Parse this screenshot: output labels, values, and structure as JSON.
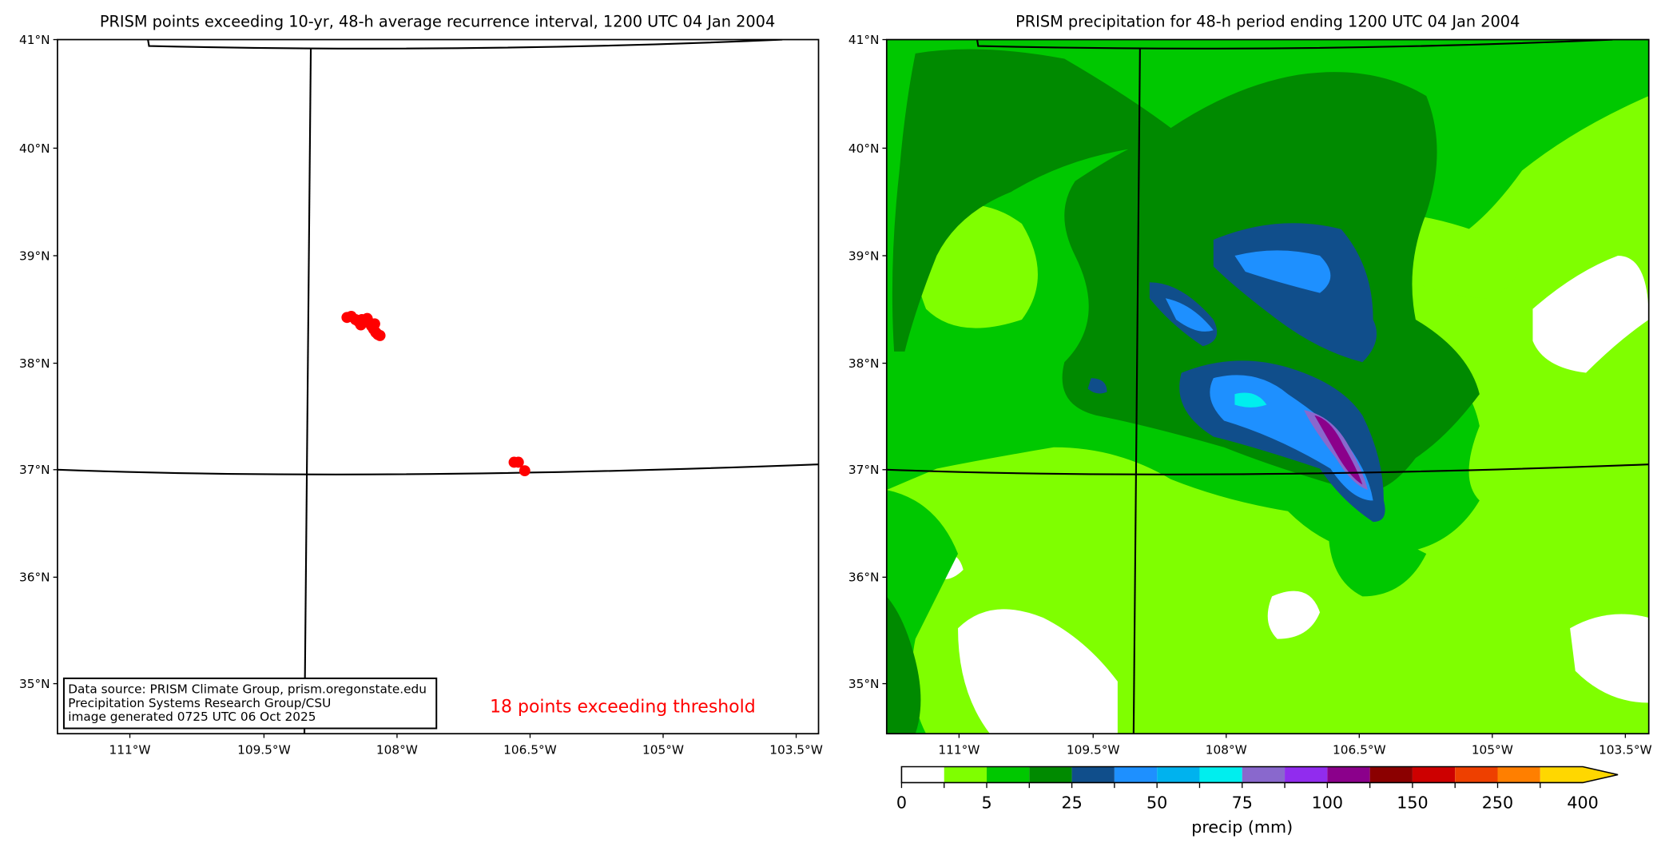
{
  "left_panel": {
    "title": "PRISM points exceeding 10-yr, 48-h average recurrence interval, 1200 UTC 04 Jan 2004",
    "annotation": "18 points exceeding threshold",
    "annotation_color": "#ff0000",
    "source_box": [
      "Data source: PRISM Climate Group, prism.oregonstate.edu",
      "Precipitation Systems Research Group/CSU",
      "image generated 0725 UTC 06 Oct 2025"
    ],
    "point_color": "#ff0000"
  },
  "right_panel": {
    "title": "PRISM precipitation for 48-h period ending 1200 UTC 04 Jan 2004"
  },
  "lat_ticks": [
    "41°N",
    "40°N",
    "39°N",
    "38°N",
    "37°N",
    "36°N",
    "35°N"
  ],
  "lon_ticks": [
    "111°W",
    "109.5°W",
    "108°W",
    "106.5°W",
    "105°W",
    "103.5°W"
  ],
  "colorbar": {
    "label": "precip (mm)",
    "tick_labels": [
      "0",
      "5",
      "25",
      "50",
      "75",
      "100",
      "150",
      "250",
      "400"
    ],
    "colors": [
      "#ffffff",
      "#7fff00",
      "#00c800",
      "#008a00",
      "#104e8b",
      "#1e90ff",
      "#00b2ee",
      "#00eeee",
      "#8968cd",
      "#912cee",
      "#8b008b",
      "#8b0000",
      "#cd0000",
      "#ee4000",
      "#ff7f00",
      "#ffd700"
    ],
    "extend": "max"
  }
}
